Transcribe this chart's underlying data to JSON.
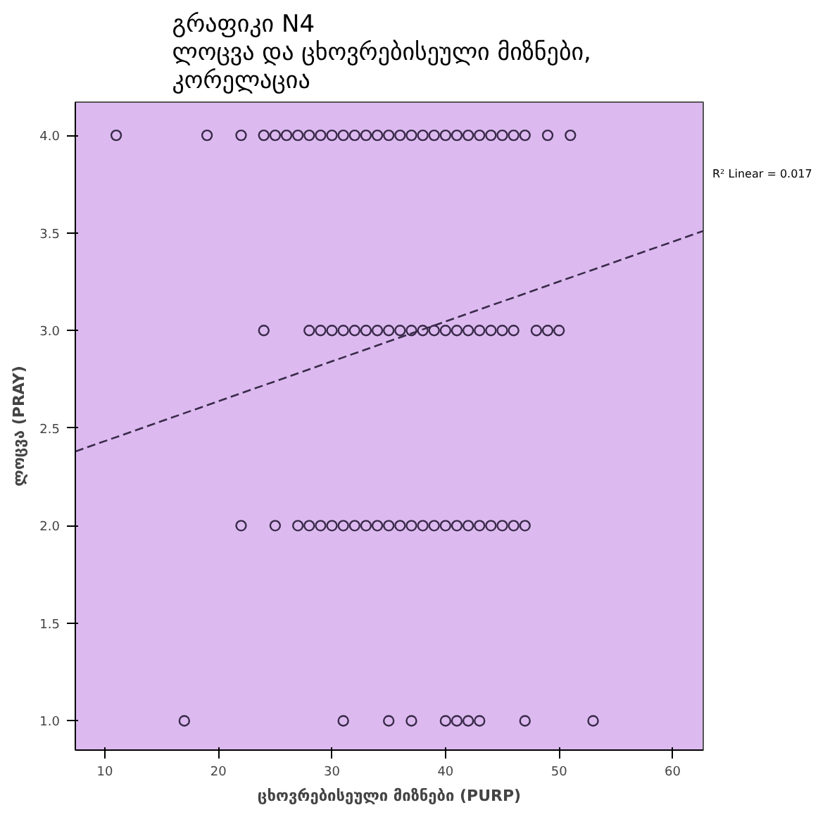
{
  "chart_data": {
    "type": "scatter",
    "title": "გრაფიკი N4\nლოცვა  და  ცხოვრებისეული მიზნები,\nკორელაცია",
    "xlabel": "ცხოვრებისეული მიზნები (PURP)",
    "ylabel": "ლოცვა (PRAY)",
    "xlim": [
      7.4,
      62.7
    ],
    "ylim": [
      0.85,
      4.17
    ],
    "xticks": [
      10,
      20,
      30,
      40,
      50,
      60
    ],
    "yticks": [
      {
        "value": 1,
        "label": "1.0"
      },
      {
        "value": 1.5,
        "label": "1.5"
      },
      {
        "value": 2,
        "label": "2.0"
      },
      {
        "value": 2.5,
        "label": "2.5"
      },
      {
        "value": 3,
        "label": "3.0"
      },
      {
        "value": 3.5,
        "label": "3.5"
      },
      {
        "value": 4,
        "label": "4.0"
      }
    ],
    "grid": false,
    "series": [
      {
        "marker": "circle",
        "color": "#3a2a4a",
        "x": [
          11,
          19,
          22,
          24,
          25,
          26,
          27,
          28,
          29,
          30,
          31,
          32,
          33,
          34,
          35,
          36,
          37,
          38,
          39,
          40,
          41,
          42,
          43,
          44,
          45,
          46,
          47,
          49,
          51,
          24,
          28,
          29,
          30,
          31,
          32,
          33,
          34,
          35,
          36,
          37,
          38,
          39,
          40,
          41,
          42,
          43,
          44,
          45,
          46,
          48,
          49,
          50,
          22,
          25,
          27,
          28,
          29,
          30,
          31,
          32,
          33,
          34,
          35,
          36,
          37,
          38,
          39,
          40,
          41,
          42,
          43,
          44,
          45,
          46,
          47,
          17,
          31,
          35,
          37,
          40,
          41,
          42,
          43,
          47,
          53
        ],
        "values": [
          4,
          4,
          4,
          4,
          4,
          4,
          4,
          4,
          4,
          4,
          4,
          4,
          4,
          4,
          4,
          4,
          4,
          4,
          4,
          4,
          4,
          4,
          4,
          4,
          4,
          4,
          4,
          4,
          4,
          3,
          3,
          3,
          3,
          3,
          3,
          3,
          3,
          3,
          3,
          3,
          3,
          3,
          3,
          3,
          3,
          3,
          3,
          3,
          3,
          3,
          3,
          3,
          2,
          2,
          2,
          2,
          2,
          2,
          2,
          2,
          2,
          2,
          2,
          2,
          2,
          2,
          2,
          2,
          2,
          2,
          2,
          2,
          2,
          2,
          2,
          1,
          1,
          1,
          1,
          1,
          1,
          1,
          1,
          1,
          1
        ]
      },
      {
        "type": "line",
        "line_style": "dashed",
        "marker": "none",
        "color": "#3a2a4a",
        "x": [
          7.4,
          62.7
        ],
        "values": [
          2.38,
          3.51
        ]
      }
    ],
    "annotations": [
      "R² Linear = 0.017"
    ]
  }
}
